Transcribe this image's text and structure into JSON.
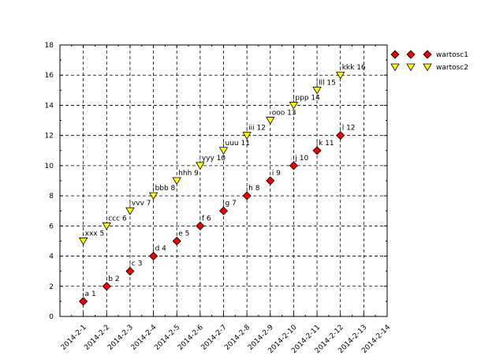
{
  "chart_data": {
    "type": "scatter",
    "title": "",
    "xlabel": "",
    "ylabel": "",
    "x_categories": [
      "2014-2-1",
      "2014-2-2",
      "2014-2-3",
      "2014-2-4",
      "2014-2-5",
      "2014-2-6",
      "2014-2-7",
      "2014-2-8",
      "2014-2-9",
      "2014-2-10",
      "2014-2-11",
      "2014-2-12",
      "2014-2-13",
      "2014-2-14"
    ],
    "xlim": [
      "2014-1-31",
      "2014-2-14"
    ],
    "ylim": [
      0,
      18
    ],
    "y_ticks": [
      0,
      2,
      4,
      6,
      8,
      10,
      12,
      14,
      16,
      18
    ],
    "grid": true,
    "legend_position": "right-top",
    "series": [
      {
        "name": "wartosc1",
        "marker": "diamond",
        "color": "#ee0000",
        "points": [
          {
            "x": "2014-2-1",
            "y": 1,
            "label": "a 1"
          },
          {
            "x": "2014-2-2",
            "y": 2,
            "label": "b 2"
          },
          {
            "x": "2014-2-3",
            "y": 3,
            "label": "c 3"
          },
          {
            "x": "2014-2-4",
            "y": 4,
            "label": "d 4"
          },
          {
            "x": "2014-2-5",
            "y": 5,
            "label": "e 5"
          },
          {
            "x": "2014-2-6",
            "y": 6,
            "label": "f 6"
          },
          {
            "x": "2014-2-7",
            "y": 7,
            "label": "g 7"
          },
          {
            "x": "2014-2-8",
            "y": 8,
            "label": "h 8"
          },
          {
            "x": "2014-2-9",
            "y": 9,
            "label": "i 9"
          },
          {
            "x": "2014-2-10",
            "y": 10,
            "label": "j 10"
          },
          {
            "x": "2014-2-11",
            "y": 11,
            "label": "k 11"
          },
          {
            "x": "2014-2-12",
            "y": 12,
            "label": "l 12"
          }
        ]
      },
      {
        "name": "wartosc2",
        "marker": "triangle-down",
        "color": "#ffff00",
        "points": [
          {
            "x": "2014-2-1",
            "y": 5,
            "label": "xxx 5"
          },
          {
            "x": "2014-2-2",
            "y": 6,
            "label": "ccc 6"
          },
          {
            "x": "2014-2-3",
            "y": 7,
            "label": "vvv 7"
          },
          {
            "x": "2014-2-4",
            "y": 8,
            "label": "bbb 8"
          },
          {
            "x": "2014-2-5",
            "y": 9,
            "label": "hhh 9"
          },
          {
            "x": "2014-2-6",
            "y": 10,
            "label": "yyy 10"
          },
          {
            "x": "2014-2-7",
            "y": 11,
            "label": "uuu 11"
          },
          {
            "x": "2014-2-8",
            "y": 12,
            "label": "iii 12"
          },
          {
            "x": "2014-2-9",
            "y": 13,
            "label": "ooo 13"
          },
          {
            "x": "2014-2-10",
            "y": 14,
            "label": "ppp 14"
          },
          {
            "x": "2014-2-11",
            "y": 15,
            "label": "lll 15"
          },
          {
            "x": "2014-2-12",
            "y": 16,
            "label": "kkk 16"
          }
        ]
      }
    ]
  }
}
